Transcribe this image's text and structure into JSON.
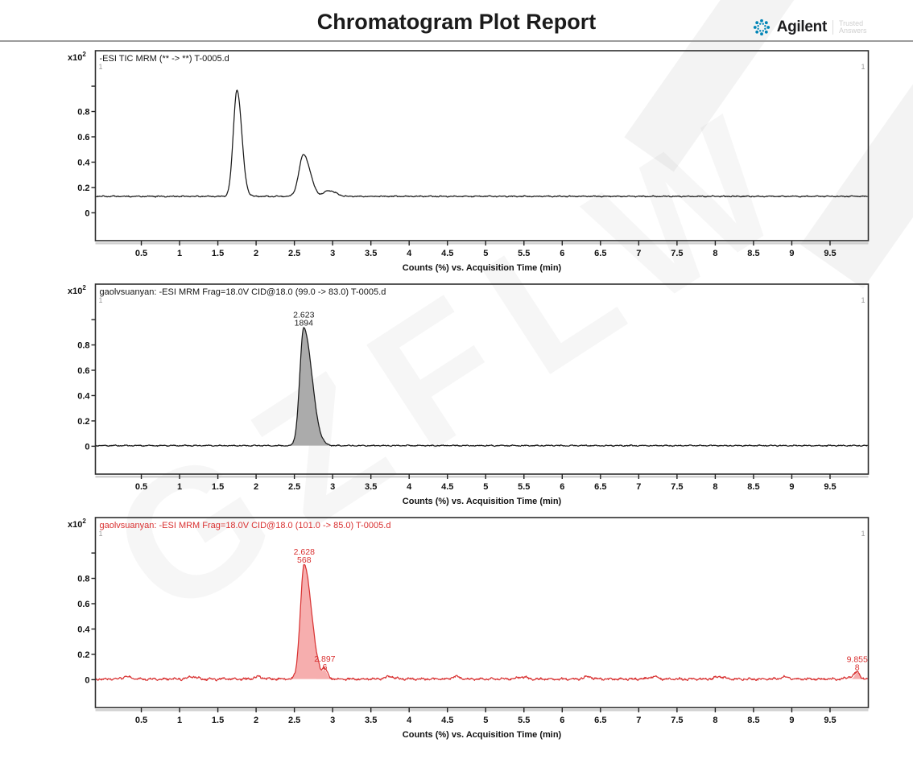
{
  "page": {
    "title": "Chromatogram Plot Report"
  },
  "logo": {
    "brand": "Agilent",
    "tagline": "Trusted Answers",
    "accent": "#0085b7"
  },
  "watermark": {
    "text": "GZFLW"
  },
  "chart_data": [
    {
      "type": "line",
      "title": "-ESI TIC MRM (** -> **) T-0005.d",
      "title_color": "#141414",
      "color": "#1a1a1a",
      "fill_color": null,
      "label_color": "#1a1a1a",
      "xlabel": "Counts (%) vs. Acquisition Time (min)",
      "y_unit": "x10",
      "y_exp": "2",
      "xlim": [
        -0.1,
        10.0
      ],
      "ylim": [
        -0.22,
        1.28
      ],
      "x_ticks": [
        0.5,
        1,
        1.5,
        2,
        2.5,
        3,
        3.5,
        4,
        4.5,
        5,
        5.5,
        6,
        6.5,
        7,
        7.5,
        8,
        8.5,
        9,
        9.5
      ],
      "y_ticks": [
        0,
        0.2,
        0.4,
        0.6,
        0.8
      ],
      "y_ticks_unlabeled": [
        1.0
      ],
      "segment_markers": [
        "1",
        "1"
      ],
      "baseline": 0.13,
      "noise": 0.006,
      "seed": 3,
      "bump": 0,
      "peaks": [
        {
          "rt": 1.75,
          "h": 0.84,
          "sl": 0.048,
          "sr": 0.062,
          "fill": false
        },
        {
          "rt": 2.62,
          "h": 0.33,
          "sl": 0.06,
          "sr": 0.085,
          "fill": false
        },
        {
          "rt": 2.95,
          "h": 0.045,
          "sl": 0.06,
          "sr": 0.09,
          "fill": false
        }
      ]
    },
    {
      "type": "line",
      "title": "gaolvsuanyan: -ESI MRM Frag=18.0V CID@18.0 (99.0 -> 83.0) T-0005.d",
      "title_color": "#141414",
      "color": "#1a1a1a",
      "fill_color": "#ababab",
      "label_color": "#1a1a1a",
      "xlabel": "Counts (%) vs. Acquisition Time (min)",
      "y_unit": "x10",
      "y_exp": "2",
      "xlim": [
        -0.1,
        10.0
      ],
      "ylim": [
        -0.22,
        1.28
      ],
      "x_ticks": [
        0.5,
        1,
        1.5,
        2,
        2.5,
        3,
        3.5,
        4,
        4.5,
        5,
        5.5,
        6,
        6.5,
        7,
        7.5,
        8,
        8.5,
        9,
        9.5
      ],
      "y_ticks": [
        0,
        0.2,
        0.4,
        0.6,
        0.8
      ],
      "y_ticks_unlabeled": [
        1.0
      ],
      "segment_markers": [
        "1",
        "1"
      ],
      "baseline": 0.005,
      "noise": 0.006,
      "seed": 11,
      "bump": 0,
      "peaks": [
        {
          "rt": 2.623,
          "h": 0.93,
          "sl": 0.052,
          "sr": 0.105,
          "fill": true,
          "label_rt": "2.623",
          "label_area": "1894"
        }
      ]
    },
    {
      "type": "line",
      "title": "gaolvsuanyan: -ESI MRM Frag=18.0V CID@18.0 (101.0 -> 85.0) T-0005.d",
      "title_color": "#d93030",
      "color": "#d93434",
      "fill_color": "#f6aeae",
      "label_color": "#d93030",
      "xlabel": "Counts (%) vs. Acquisition Time (min)",
      "y_unit": "x10",
      "y_exp": "2",
      "xlim": [
        -0.1,
        10.0
      ],
      "ylim": [
        -0.22,
        1.28
      ],
      "x_ticks": [
        0.5,
        1,
        1.5,
        2,
        2.5,
        3,
        3.5,
        4,
        4.5,
        5,
        5.5,
        6,
        6.5,
        7,
        7.5,
        8,
        8.5,
        9,
        9.5
      ],
      "y_ticks": [
        0,
        0.2,
        0.4,
        0.6,
        0.8
      ],
      "y_ticks_unlabeled": [
        1.0
      ],
      "segment_markers": [
        "1",
        "1"
      ],
      "baseline": 0.005,
      "noise": 0.013,
      "seed": 27,
      "bump": 1,
      "peaks": [
        {
          "rt": 2.628,
          "h": 0.9,
          "sl": 0.05,
          "sr": 0.095,
          "fill": true,
          "label_rt": "2.628",
          "label_area": "568"
        },
        {
          "rt": 2.897,
          "h": 0.055,
          "sl": 0.025,
          "sr": 0.03,
          "fill": true,
          "label_rt": "2.897",
          "label_area": "6"
        },
        {
          "rt": 9.855,
          "h": 0.05,
          "sl": 0.03,
          "sr": 0.035,
          "fill": true,
          "label_rt": "9.855",
          "label_area": "8"
        }
      ]
    }
  ]
}
